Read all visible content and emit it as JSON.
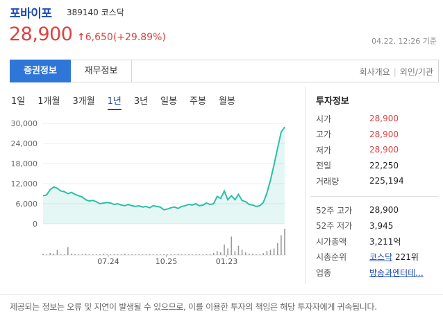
{
  "stock": {
    "name": "포바이포",
    "code": "389140",
    "market": "코스닥",
    "price": "28,900",
    "change": "6,650(+29.89%)",
    "change_arrow": "↑",
    "timestamp": "04.22. 12:26 기준"
  },
  "tabs": {
    "active": "증권정보",
    "second": "재무정보",
    "right": [
      "회사개요",
      "외인/기관"
    ]
  },
  "periods": [
    "1일",
    "1개월",
    "3개월",
    "1년",
    "3년",
    "일봉",
    "주봉",
    "월봉"
  ],
  "active_period": "1년",
  "invest_info": {
    "title": "투자정보",
    "rows": [
      {
        "label": "시가",
        "value": "28,900",
        "red": true
      },
      {
        "label": "고가",
        "value": "28,900",
        "red": true
      },
      {
        "label": "저가",
        "value": "28,900",
        "red": true
      },
      {
        "label": "전일",
        "value": "22,250",
        "red": false
      },
      {
        "label": "거래량",
        "value": "225,194",
        "red": false
      }
    ],
    "rows2": [
      {
        "label": "52주 고가",
        "value": "28,900"
      },
      {
        "label": "52주 저가",
        "value": "3,945"
      },
      {
        "label": "시가총액",
        "value": "3,211억"
      }
    ],
    "rank_label": "시총순위",
    "rank_market": "코스닥",
    "rank_value": "221위",
    "industry_label": "업종",
    "industry_value": "방송과엔터테..."
  },
  "footer": "제공되는 정보는 오류 및 지연이 발생될 수 있으므로, 이를 이용한 투자의 책임은 해당 투자자에게 귀속됩니다.",
  "colors": {
    "up": "#e0413d",
    "line": "#2bbfa7",
    "accent": "#2f76d9"
  },
  "chart_data": {
    "type": "line",
    "y_ticks": [
      "30,000",
      "24,000",
      "18,000",
      "12,000",
      "6,000",
      "0"
    ],
    "ylim": [
      0,
      30000
    ],
    "x_labels": [
      "07.24",
      "10.25",
      "01.23"
    ],
    "x_label_positions": [
      0.27,
      0.51,
      0.76
    ],
    "values": [
      8400,
      8600,
      10200,
      11000,
      10600,
      9800,
      9600,
      9000,
      9400,
      8800,
      8400,
      8000,
      7200,
      6800,
      7000,
      6600,
      6000,
      6200,
      6400,
      6200,
      5800,
      6000,
      5600,
      5400,
      5800,
      5400,
      5200,
      5400,
      5000,
      5200,
      4800,
      5400,
      5200,
      5000,
      4200,
      4400,
      4800,
      5000,
      4600,
      5200,
      5400,
      5800,
      5600,
      6000,
      5400,
      5600,
      6200,
      5800,
      6000,
      8200,
      7600,
      9800,
      7200,
      8400,
      7200,
      8800,
      7000,
      6600,
      5800,
      5600,
      5200,
      5400,
      6400,
      9200,
      13000,
      17600,
      22600,
      27400,
      28900
    ],
    "volume": [
      2,
      1,
      3,
      2,
      8,
      1,
      1,
      12,
      2,
      1,
      1,
      1,
      2,
      1,
      1,
      1,
      1,
      2,
      1,
      1,
      1,
      1,
      1,
      2,
      1,
      1,
      1,
      1,
      1,
      1,
      1,
      1,
      1,
      1,
      1,
      1,
      1,
      1,
      2,
      1,
      1,
      1,
      1,
      1,
      1,
      1,
      1,
      1,
      3,
      6,
      4,
      16,
      10,
      28,
      6,
      14,
      8,
      4,
      2,
      2,
      1,
      1,
      3,
      6,
      8,
      10,
      18,
      30,
      40
    ]
  }
}
